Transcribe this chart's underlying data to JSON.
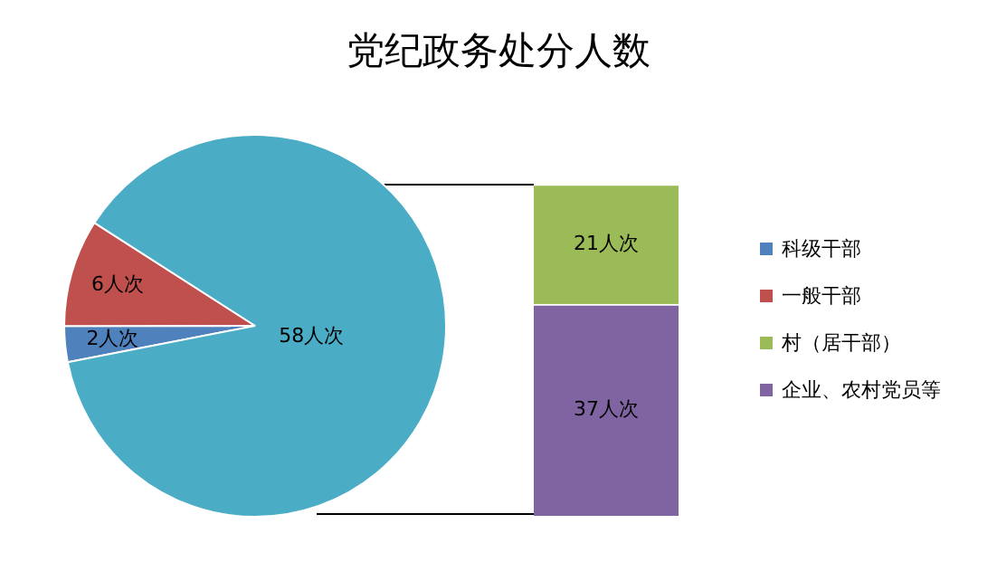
{
  "chart_data": [
    {
      "type": "pie",
      "title": "党纪政务处分人数",
      "categories": [
        "科级干部",
        "一般干部",
        null
      ],
      "values": [
        2,
        6,
        58
      ],
      "colors": [
        "#4f81bd",
        "#c0504d",
        "#4bacc6"
      ],
      "value_labels": [
        "2人次",
        "6人次",
        "58人次"
      ],
      "legend": "right"
    },
    {
      "type": "bar",
      "stacked": true,
      "categories": [
        null
      ],
      "legend": "right",
      "series": [
        {
          "name": "企业、农村党员等",
          "color": "#8064a2",
          "values": [
            37
          ],
          "value_labels": [
            "37人次"
          ]
        },
        {
          "name": "村（居干部）",
          "color": "#9bbb59",
          "values": [
            21
          ],
          "value_labels": [
            "21人次"
          ]
        }
      ]
    }
  ]
}
